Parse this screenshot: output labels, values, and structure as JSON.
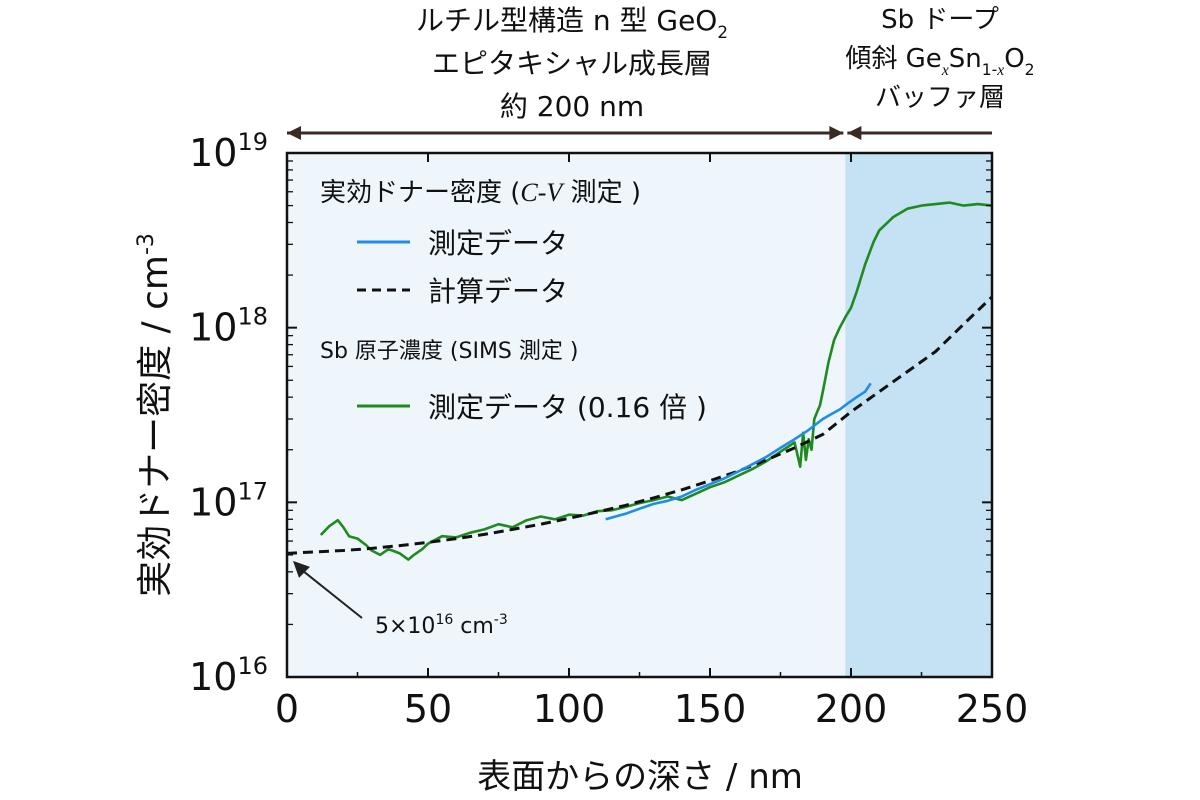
{
  "chart_data": {
    "type": "line",
    "y_scale": "log",
    "xlabel": "表面からの深さ / nm",
    "ylabel": "実効ドナー密度 / cm",
    "ylabel_sup": "-3",
    "xlim": [
      0,
      250
    ],
    "ylim": [
      1e+16,
      1e+19
    ],
    "x_ticks": [
      "0",
      "50",
      "100",
      "150",
      "200",
      "250"
    ],
    "x_tick_values": [
      0,
      50,
      100,
      150,
      200,
      250
    ],
    "y_ticks": [
      {
        "value": 1e+16,
        "base": "10",
        "exp": "16"
      },
      {
        "value": 1e+17,
        "base": "10",
        "exp": "17"
      },
      {
        "value": 1e+18,
        "base": "10",
        "exp": "18"
      },
      {
        "value": 1e+19,
        "base": "10",
        "exp": "19"
      }
    ],
    "regions": [
      {
        "x_start": 0,
        "x_end": 198,
        "color": "#eef6fb",
        "label_lines": [
          {
            "parts": [
              {
                "t": "ルチル型構造 n 型 GeO"
              },
              {
                "t": "2",
                "sub": true
              }
            ]
          },
          {
            "parts": [
              {
                "t": "エピタキシャル成長層"
              }
            ]
          },
          {
            "parts": [
              {
                "t": "約 200 nm"
              }
            ]
          }
        ]
      },
      {
        "x_start": 198,
        "x_end": 250,
        "color": "#c4e2f4",
        "label_lines": [
          {
            "parts": [
              {
                "t": "Sb ドープ"
              }
            ]
          },
          {
            "parts": [
              {
                "t": "傾斜 Ge"
              },
              {
                "t": "x",
                "sub": true,
                "italic": true
              },
              {
                "t": "Sn"
              },
              {
                "t": "1-",
                "sub": true
              },
              {
                "t": "x",
                "sub": true,
                "italic": true
              },
              {
                "t": "O"
              },
              {
                "t": "2",
                "sub": true
              }
            ]
          },
          {
            "parts": [
              {
                "t": "バッファ層"
              }
            ]
          }
        ]
      }
    ],
    "legend": {
      "group1_title": "実効ドナー密度 (C-V 測定 )",
      "group1_entries": [
        "測定データ",
        "計算データ"
      ],
      "group2_title": "Sb 原子濃度 (SIMS 測定 )",
      "group2_entries": [
        "測定データ (0.16 倍 )"
      ]
    },
    "annotation": {
      "text": "5×10",
      "sup": "16",
      "unit": " cm",
      "unit_sup": "-3",
      "x": 0,
      "y": 5e+16
    },
    "series": [
      {
        "name": "測定データ",
        "group": "実効ドナー密度 (C-V 測定 )",
        "color": "#1e8de8",
        "style": "solid",
        "x": [
          113,
          120,
          125,
          130,
          135,
          140,
          145,
          150,
          155,
          160,
          165,
          170,
          175,
          180,
          185,
          190,
          193,
          196,
          199,
          202,
          205,
          207
        ],
        "y": [
          8e+16,
          8.6e+16,
          9.2e+16,
          9.8e+16,
          1.02e+17,
          1.08e+17,
          1.18e+17,
          1.27e+17,
          1.37e+17,
          1.5e+17,
          1.65e+17,
          1.82e+17,
          2.05e+17,
          2.3e+17,
          2.6e+17,
          3e+17,
          3.2e+17,
          3.4e+17,
          3.7e+17,
          4e+17,
          4.3e+17,
          4.8e+17
        ]
      },
      {
        "name": "計算データ",
        "group": "実効ドナー密度 (C-V 測定 )",
        "color": "#111111",
        "style": "dashed",
        "x": [
          0,
          10,
          20,
          30,
          40,
          50,
          60,
          70,
          80,
          90,
          100,
          110,
          120,
          130,
          140,
          150,
          160,
          170,
          180,
          190,
          200,
          210,
          220,
          230,
          240,
          250
        ],
        "y": [
          5.1e+16,
          5.2e+16,
          5.3e+16,
          5.45e+16,
          5.65e+16,
          5.9e+16,
          6.2e+16,
          6.55e+16,
          7e+16,
          7.5e+16,
          8.1e+16,
          8.8e+16,
          9.6e+16,
          1.06e+17,
          1.18e+17,
          1.33e+17,
          1.51e+17,
          1.75e+17,
          2.05e+17,
          2.45e+17,
          3.3e+17,
          4.3e+17,
          5.6e+17,
          7.3e+17,
          1.05e+18,
          1.5e+18
        ]
      },
      {
        "name": "測定データ (0.16 倍 )",
        "group": "Sb 原子濃度 (SIMS 測定 )",
        "color": "#1f8a1f",
        "style": "solid",
        "x": [
          12,
          15,
          18,
          20,
          22,
          25,
          28,
          30,
          33,
          36,
          40,
          43,
          45,
          48,
          50,
          55,
          60,
          65,
          70,
          75,
          80,
          85,
          90,
          95,
          100,
          105,
          110,
          115,
          120,
          125,
          130,
          135,
          140,
          145,
          150,
          155,
          160,
          165,
          170,
          175,
          180,
          182,
          183,
          184,
          185,
          186,
          187,
          188,
          189,
          190,
          192,
          194,
          196,
          198,
          200,
          202,
          205,
          208,
          210,
          215,
          220,
          225,
          230,
          235,
          240,
          245,
          250
        ],
        "y": [
          6.5e+16,
          7.3e+16,
          7.9e+16,
          7.2e+16,
          6.4e+16,
          6.2e+16,
          5.7e+16,
          5.3e+16,
          5e+16,
          5.4e+16,
          5.1e+16,
          4.7e+16,
          5e+16,
          5.4e+16,
          5.8e+16,
          6.4e+16,
          6.3e+16,
          6.7e+16,
          7e+16,
          7.5e+16,
          7.2e+16,
          7.9e+16,
          8.3e+16,
          8e+16,
          8.5e+16,
          8.4e+16,
          8.9e+16,
          9e+16,
          9.4e+16,
          9.9e+16,
          1.03e+17,
          1.08e+17,
          1.03e+17,
          1.12e+17,
          1.22e+17,
          1.3e+17,
          1.42e+17,
          1.55e+17,
          1.72e+17,
          1.95e+17,
          2.2e+17,
          1.6e+17,
          2.5e+17,
          1.75e+17,
          2.3e+17,
          2e+17,
          3e+17,
          3.3e+17,
          3.6e+17,
          4.3e+17,
          6.3e+17,
          8.5e+17,
          1e+18,
          1.15e+18,
          1.3e+18,
          1.6e+18,
          2.3e+18,
          3.1e+18,
          3.6e+18,
          4.3e+18,
          4.8e+18,
          5e+18,
          5.1e+18,
          5.2e+18,
          5e+18,
          5.1e+18,
          5e+18
        ]
      }
    ]
  }
}
